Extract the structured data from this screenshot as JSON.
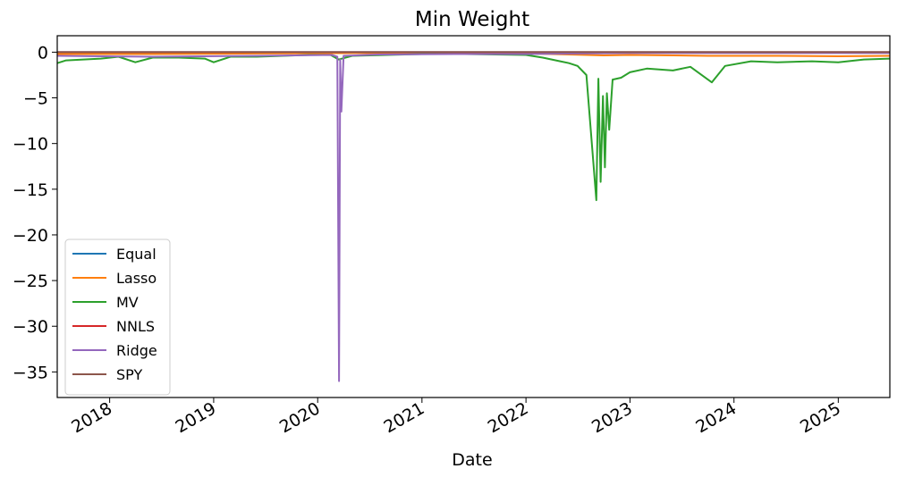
{
  "chart_data": {
    "type": "line",
    "title": "Min Weight",
    "xlabel": "Date",
    "ylabel": "",
    "x_tick_labels": [
      "2018",
      "2019",
      "2020",
      "2021",
      "2022",
      "2023",
      "2024",
      "2025"
    ],
    "y_tick_labels": [
      "0",
      "−5",
      "−10",
      "−15",
      "−20",
      "−25",
      "−30",
      "−35"
    ],
    "y_ticks": [
      0,
      -5,
      -10,
      -15,
      -20,
      -25,
      -30,
      -35
    ],
    "xlim": [
      "2017-07-01",
      "2025-07-01"
    ],
    "ylim": [
      -37.8,
      1.8
    ],
    "legend_position": "lower-left",
    "grid": false,
    "series": [
      {
        "name": "Equal",
        "color": "#1f77b4",
        "points": [
          [
            "2017-07-01",
            0.0
          ],
          [
            "2025-07-01",
            0.0
          ]
        ]
      },
      {
        "name": "Lasso",
        "color": "#ff7f0e",
        "points": [
          [
            "2017-07-01",
            -0.2
          ],
          [
            "2018-06-01",
            -0.2
          ],
          [
            "2019-06-01",
            -0.15
          ],
          [
            "2020-06-01",
            -0.1
          ],
          [
            "2021-06-01",
            -0.1
          ],
          [
            "2022-01-01",
            -0.15
          ],
          [
            "2022-06-01",
            -0.25
          ],
          [
            "2022-10-01",
            -0.35
          ],
          [
            "2023-01-01",
            -0.3
          ],
          [
            "2023-06-01",
            -0.35
          ],
          [
            "2023-10-01",
            -0.4
          ],
          [
            "2024-01-01",
            -0.4
          ],
          [
            "2024-06-01",
            -0.4
          ],
          [
            "2025-01-01",
            -0.45
          ],
          [
            "2025-07-01",
            -0.4
          ]
        ]
      },
      {
        "name": "MV",
        "color": "#2ca02c",
        "points": [
          [
            "2017-07-01",
            -1.2
          ],
          [
            "2017-08-01",
            -0.9
          ],
          [
            "2017-10-01",
            -0.8
          ],
          [
            "2017-12-01",
            -0.7
          ],
          [
            "2018-02-01",
            -0.5
          ],
          [
            "2018-04-01",
            -1.1
          ],
          [
            "2018-06-01",
            -0.6
          ],
          [
            "2018-09-01",
            -0.6
          ],
          [
            "2018-12-01",
            -0.7
          ],
          [
            "2019-01-01",
            -1.1
          ],
          [
            "2019-03-01",
            -0.5
          ],
          [
            "2019-06-01",
            -0.5
          ],
          [
            "2019-09-01",
            -0.4
          ],
          [
            "2019-12-01",
            -0.3
          ],
          [
            "2020-02-15",
            -0.3
          ],
          [
            "2020-03-15",
            -0.8
          ],
          [
            "2020-05-01",
            -0.4
          ],
          [
            "2020-09-01",
            -0.3
          ],
          [
            "2021-01-01",
            -0.2
          ],
          [
            "2021-06-01",
            -0.2
          ],
          [
            "2022-01-01",
            -0.3
          ],
          [
            "2022-03-01",
            -0.6
          ],
          [
            "2022-05-01",
            -1.0
          ],
          [
            "2022-06-01",
            -1.2
          ],
          [
            "2022-07-01",
            -1.5
          ],
          [
            "2022-08-01",
            -2.5
          ],
          [
            "2022-09-05",
            -16.2
          ],
          [
            "2022-09-12",
            -2.9
          ],
          [
            "2022-09-20",
            -14.2
          ],
          [
            "2022-09-28",
            -4.8
          ],
          [
            "2022-10-05",
            -12.6
          ],
          [
            "2022-10-12",
            -4.5
          ],
          [
            "2022-10-20",
            -8.5
          ],
          [
            "2022-11-01",
            -3.0
          ],
          [
            "2022-12-01",
            -2.8
          ],
          [
            "2023-01-01",
            -2.2
          ],
          [
            "2023-03-01",
            -1.8
          ],
          [
            "2023-06-01",
            -2.0
          ],
          [
            "2023-08-01",
            -1.6
          ],
          [
            "2023-10-15",
            -3.3
          ],
          [
            "2023-12-01",
            -1.5
          ],
          [
            "2024-03-01",
            -1.0
          ],
          [
            "2024-06-01",
            -1.1
          ],
          [
            "2024-10-01",
            -1.0
          ],
          [
            "2025-01-01",
            -1.1
          ],
          [
            "2025-04-01",
            -0.8
          ],
          [
            "2025-07-01",
            -0.7
          ]
        ]
      },
      {
        "name": "NNLS",
        "color": "#d62728",
        "points": [
          [
            "2017-07-01",
            0.0
          ],
          [
            "2025-07-01",
            0.0
          ]
        ]
      },
      {
        "name": "Ridge",
        "color": "#9467bd",
        "points": [
          [
            "2017-07-01",
            -0.4
          ],
          [
            "2018-06-01",
            -0.5
          ],
          [
            "2019-06-01",
            -0.4
          ],
          [
            "2020-02-20",
            -0.3
          ],
          [
            "2020-03-10",
            -0.5
          ],
          [
            "2020-03-16",
            -36.0
          ],
          [
            "2020-03-20",
            -0.8
          ],
          [
            "2020-03-24",
            -6.5
          ],
          [
            "2020-04-01",
            -0.4
          ],
          [
            "2020-08-01",
            -0.25
          ],
          [
            "2021-06-01",
            -0.2
          ],
          [
            "2022-01-01",
            -0.2
          ],
          [
            "2023-01-01",
            -0.1
          ],
          [
            "2025-07-01",
            -0.1
          ]
        ]
      },
      {
        "name": "SPY",
        "color": "#8c564b",
        "points": [
          [
            "2017-07-01",
            0.0
          ],
          [
            "2025-07-01",
            0.0
          ]
        ]
      }
    ]
  }
}
